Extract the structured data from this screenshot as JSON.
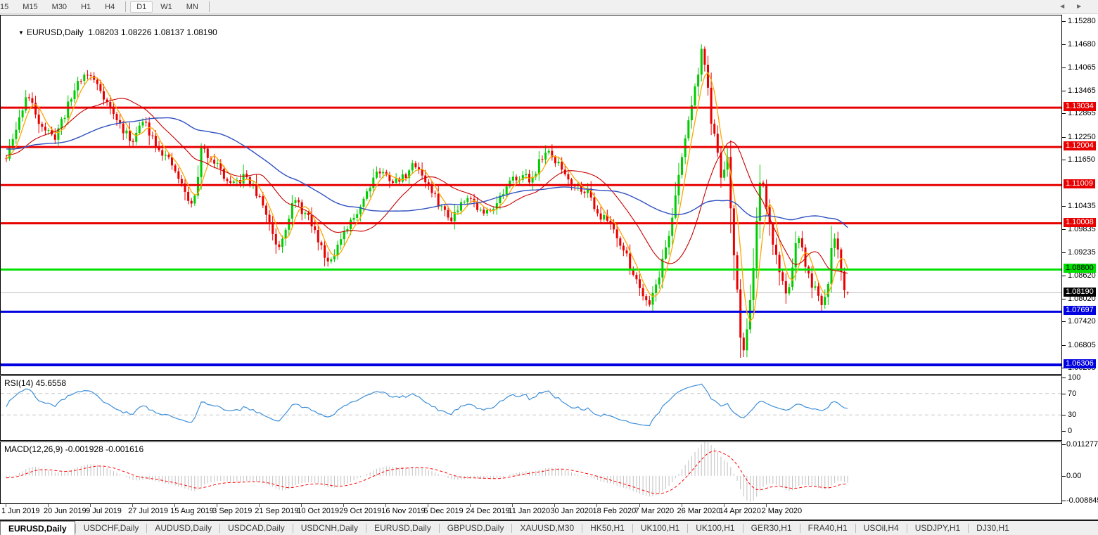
{
  "toolbar": {
    "timeframes": [
      {
        "label": "15",
        "active": false,
        "cut": true
      },
      {
        "label": "M15",
        "active": false
      },
      {
        "label": "M30",
        "active": false
      },
      {
        "label": "H1",
        "active": false
      },
      {
        "label": "H4",
        "active": false
      },
      {
        "sep": true
      },
      {
        "label": "D1",
        "active": true
      },
      {
        "label": "W1",
        "active": false
      },
      {
        "label": "MN",
        "active": false
      },
      {
        "sep": true
      }
    ]
  },
  "chart": {
    "dropdown_glyph": "▼",
    "symbol_text": "EURUSD,Daily",
    "ohlc_text": "1.08203 1.08226 1.08137 1.08190"
  },
  "rsi_panel": {
    "label": "RSI(14) 45.6558"
  },
  "macd_panel": {
    "label": "MACD(12,26,9) -0.001928 -0.001616"
  },
  "chart_data": {
    "type": "candlestick",
    "title": "EURUSD,Daily",
    "symbol": "EURUSD",
    "timeframe": "Daily",
    "current_ohlc": {
      "open": 1.08203,
      "high": 1.08226,
      "low": 1.08137,
      "close": 1.0819
    },
    "price_range_view": [
      1.06067,
      1.15445
    ],
    "candle_count": 260,
    "seed": 11,
    "up_color": "#00CC00",
    "down_color": "#EB0000",
    "prehistory": {
      "count": 60,
      "from": 1.1235,
      "to": 1.117
    },
    "price_path_anchors": [
      [
        0.0,
        1.117
      ],
      [
        0.013,
        1.1255
      ],
      [
        0.024,
        1.134
      ],
      [
        0.04,
        1.1265
      ],
      [
        0.056,
        1.122
      ],
      [
        0.072,
        1.13
      ],
      [
        0.086,
        1.1378
      ],
      [
        0.097,
        1.1392
      ],
      [
        0.11,
        1.136
      ],
      [
        0.128,
        1.1282
      ],
      [
        0.148,
        1.1215
      ],
      [
        0.163,
        1.1268
      ],
      [
        0.18,
        1.1205
      ],
      [
        0.2,
        1.114
      ],
      [
        0.213,
        1.1078
      ],
      [
        0.222,
        1.104
      ],
      [
        0.232,
        1.1195
      ],
      [
        0.248,
        1.1165
      ],
      [
        0.266,
        1.1095
      ],
      [
        0.285,
        1.1125
      ],
      [
        0.306,
        1.1045
      ],
      [
        0.323,
        1.0935
      ],
      [
        0.342,
        1.1062
      ],
      [
        0.36,
        1.101
      ],
      [
        0.382,
        1.0902
      ],
      [
        0.4,
        1.0962
      ],
      [
        0.42,
        1.1045
      ],
      [
        0.44,
        1.114
      ],
      [
        0.465,
        1.1108
      ],
      [
        0.487,
        1.1158
      ],
      [
        0.508,
        1.1072
      ],
      [
        0.527,
        1.1012
      ],
      [
        0.548,
        1.1078
      ],
      [
        0.567,
        1.1022
      ],
      [
        0.585,
        1.1062
      ],
      [
        0.607,
        1.1128
      ],
      [
        0.624,
        1.1115
      ],
      [
        0.64,
        1.119
      ],
      [
        0.655,
        1.1158
      ],
      [
        0.672,
        1.1108
      ],
      [
        0.69,
        1.1088
      ],
      [
        0.705,
        1.1022
      ],
      [
        0.72,
        1.0998
      ],
      [
        0.736,
        1.0918
      ],
      [
        0.752,
        1.0838
      ],
      [
        0.764,
        1.0792
      ],
      [
        0.775,
        1.0858
      ],
      [
        0.789,
        1.0985
      ],
      [
        0.8,
        1.1132
      ],
      [
        0.812,
        1.1288
      ],
      [
        0.82,
        1.1365
      ],
      [
        0.826,
        1.1455
      ],
      [
        0.831,
        1.1408
      ],
      [
        0.837,
        1.1282
      ],
      [
        0.845,
        1.1182
      ],
      [
        0.851,
        1.1108
      ],
      [
        0.857,
        1.1178
      ],
      [
        0.862,
        1.0992
      ],
      [
        0.869,
        1.0818
      ],
      [
        0.874,
        1.0668
      ],
      [
        0.878,
        1.0662
      ],
      [
        0.883,
        1.0788
      ],
      [
        0.888,
        1.0882
      ],
      [
        0.893,
        1.1028
      ],
      [
        0.897,
        1.1128
      ],
      [
        0.904,
        1.1032
      ],
      [
        0.913,
        1.0932
      ],
      [
        0.921,
        1.0862
      ],
      [
        0.928,
        1.08
      ],
      [
        0.934,
        1.0892
      ],
      [
        0.941,
        1.0975
      ],
      [
        0.948,
        1.0905
      ],
      [
        0.956,
        1.0848
      ],
      [
        0.963,
        1.0818
      ],
      [
        0.97,
        1.0772
      ],
      [
        0.977,
        1.0852
      ],
      [
        0.982,
        1.0962
      ],
      [
        0.986,
        1.0975
      ],
      [
        0.99,
        1.0902
      ],
      [
        0.995,
        1.0838
      ],
      [
        1.0,
        1.0819
      ]
    ],
    "moving_averages": [
      {
        "window": 5,
        "color": "#FFA500",
        "width": 1.3
      },
      {
        "window": 20,
        "color": "#C80000",
        "width": 1.1
      },
      {
        "window": 50,
        "color": "#3050C0",
        "width": 1.4
      }
    ],
    "levels": [
      {
        "price": 1.13034,
        "color": "#E80000",
        "width": 3,
        "role": "resistance"
      },
      {
        "price": 1.12004,
        "color": "#E80000",
        "width": 3,
        "role": "resistance"
      },
      {
        "price": 1.11009,
        "color": "#E80000",
        "width": 3,
        "role": "resistance"
      },
      {
        "price": 1.10008,
        "color": "#E80000",
        "width": 3,
        "role": "resistance"
      },
      {
        "price": 1.088,
        "color": "#00E000",
        "width": 3,
        "role": "support"
      },
      {
        "price": 1.0819,
        "color": "#C0C0C0",
        "width": 1,
        "role": "current-price"
      },
      {
        "price": 1.07697,
        "color": "#0000E0",
        "width": 3,
        "role": "support"
      },
      {
        "price": 1.06306,
        "color": "#0000E0",
        "width": 4,
        "role": "support"
      }
    ],
    "y_tick_labels": [
      "1.15280",
      "1.14680",
      "1.14065",
      "1.13465",
      "1.12865",
      "1.12250",
      "1.11650",
      "1.10435",
      "1.09835",
      "1.09235",
      "1.08620",
      "1.08020",
      "1.07420",
      "1.06805",
      "1.06205"
    ],
    "y_badges": [
      {
        "label": "1.13034",
        "bg": "#E80000",
        "fg": "#ffffff"
      },
      {
        "label": "1.12004",
        "bg": "#E80000",
        "fg": "#ffffff"
      },
      {
        "label": "1.11009",
        "bg": "#E80000",
        "fg": "#ffffff"
      },
      {
        "label": "1.10008",
        "bg": "#E80000",
        "fg": "#ffffff"
      },
      {
        "label": "1.08800",
        "bg": "#00E000",
        "fg": "#000000"
      },
      {
        "label": "1.08190",
        "bg": "#000000",
        "fg": "#ffffff"
      },
      {
        "label": "1.07697",
        "bg": "#0000E0",
        "fg": "#ffffff"
      },
      {
        "label": "1.06306",
        "bg": "#0000E0",
        "fg": "#ffffff"
      }
    ],
    "x_tick_labels": [
      "1 Jun 2019",
      "20 Jun 2019",
      "9 Jul 2019",
      "27 Jul 2019",
      "15 Aug 2019",
      "3 Sep 2019",
      "21 Sep 2019",
      "10 Oct 2019",
      "29 Oct 2019",
      "16 Nov 2019",
      "5 Dec 2019",
      "24 Dec 2019",
      "11 Jan 2020",
      "30 Jan 2020",
      "18 Feb 2020",
      "7 Mar 2020",
      "26 Mar 2020",
      "14 Apr 2020",
      "2 May 2020"
    ],
    "indicators": [
      {
        "name": "RSI",
        "period": 14,
        "last_value": 45.6558,
        "levels": [
          70,
          30
        ],
        "range": [
          0,
          100
        ],
        "color": "#3E8FD8",
        "tick_labels": [
          "100",
          "70",
          "30",
          "0"
        ]
      },
      {
        "name": "MACD",
        "fast": 12,
        "slow": 26,
        "signal_period": 9,
        "last_main": -0.001928,
        "last_signal": -0.001616,
        "range": [
          -0.008845,
          0.011277
        ],
        "histogram_color": "#C0C0C0",
        "signal_color": "#FF0000",
        "tick_labels": [
          "0.011277",
          "0.00",
          "-0.008845"
        ]
      }
    ]
  },
  "tabs": {
    "items": [
      {
        "label": "EURUSD,Daily",
        "active": true
      },
      {
        "label": "USDCHF,Daily",
        "active": false
      },
      {
        "label": "AUDUSD,Daily",
        "active": false
      },
      {
        "label": "USDCAD,Daily",
        "active": false
      },
      {
        "label": "USDCNH,Daily",
        "active": false
      },
      {
        "label": "EURUSD,Daily",
        "active": false
      },
      {
        "label": "GBPUSD,Daily",
        "active": false
      },
      {
        "label": "XAUUSD,M30",
        "active": false
      },
      {
        "label": "HK50,H1",
        "active": false
      },
      {
        "label": "UK100,H1",
        "active": false
      },
      {
        "label": "UK100,H1",
        "active": false
      },
      {
        "label": "GER30,H1",
        "active": false
      },
      {
        "label": "FRA40,H1",
        "active": false
      },
      {
        "label": "USOil,H4",
        "active": false
      },
      {
        "label": "USDJPY,H1",
        "active": false
      },
      {
        "label": "DJ30,H1",
        "active": false
      }
    ],
    "nav_left": "◄",
    "nav_right": "►"
  }
}
